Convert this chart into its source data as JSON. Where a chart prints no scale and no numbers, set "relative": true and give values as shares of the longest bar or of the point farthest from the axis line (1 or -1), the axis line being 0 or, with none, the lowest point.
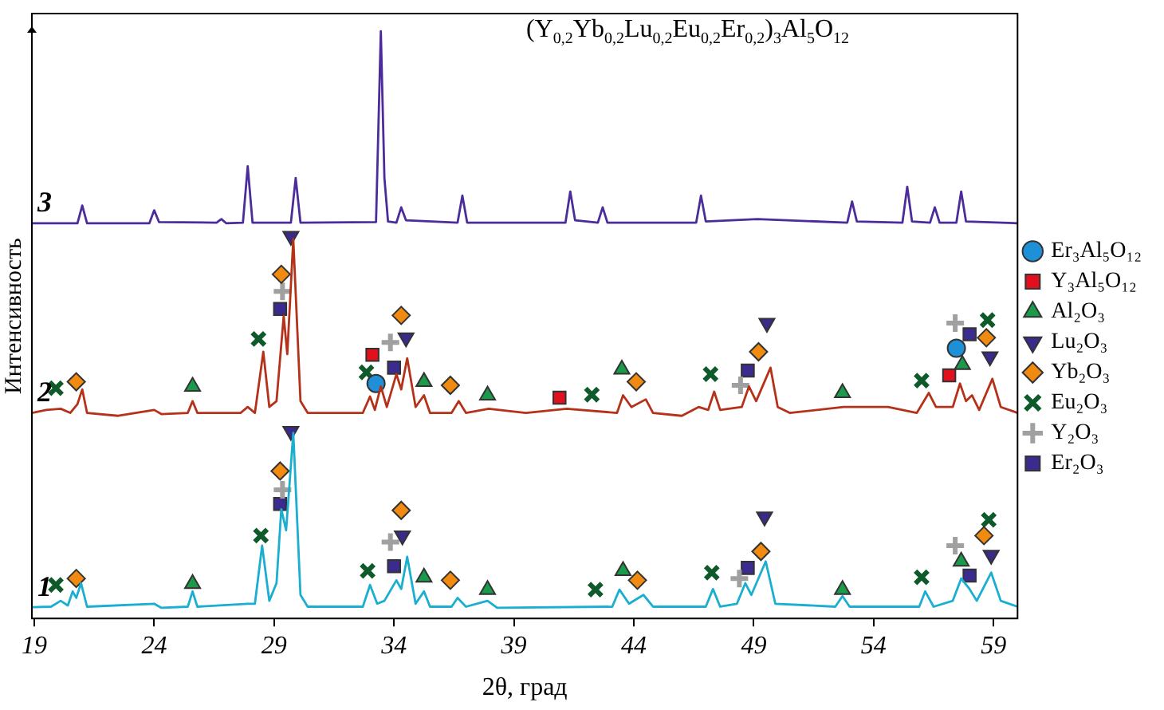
{
  "chart_data": {
    "type": "line",
    "relative": true,
    "xlabel": "2θ, град",
    "ylabel": "Интенсивность",
    "xlim": [
      18.9,
      60
    ],
    "xticks": [
      19,
      24,
      29,
      34,
      39,
      44,
      49,
      54,
      59
    ],
    "legend": "right",
    "grid": false,
    "annotations": [
      "(Y$_{0,2}$Yb$_{0,2}$Lu$_{0,2}$Eu$_{0,2}$Er$_{0,2}$)$_{3}$Al$_{5}$O$_{12}$"
    ],
    "series": [
      {
        "type": "line",
        "name": "3",
        "color": "#4b2c9a",
        "marker": "none",
        "x": [
          18.9,
          20.8,
          21.0,
          21.2,
          23.8,
          24.0,
          24.2,
          26.6,
          26.8,
          27.0,
          27.7,
          27.9,
          28.1,
          29.7,
          29.9,
          30.1,
          33.25,
          33.45,
          33.6,
          33.75,
          34.1,
          34.3,
          34.5,
          36.65,
          36.85,
          37.05,
          41.15,
          41.35,
          41.55,
          42.5,
          42.7,
          42.9,
          46.6,
          46.8,
          47.0,
          49.15,
          52.9,
          53.1,
          53.3,
          55.2,
          55.4,
          55.6,
          56.35,
          56.55,
          56.75,
          57.45,
          57.65,
          57.85,
          60
        ],
        "values": [
          0.673,
          0.673,
          0.703,
          0.673,
          0.673,
          0.695,
          0.675,
          0.674,
          0.68,
          0.673,
          0.674,
          0.77,
          0.674,
          0.674,
          0.75,
          0.674,
          0.675,
          1,
          0.75,
          0.676,
          0.674,
          0.7,
          0.678,
          0.674,
          0.72,
          0.674,
          0.674,
          0.727,
          0.678,
          0.674,
          0.7,
          0.674,
          0.674,
          0.72,
          0.676,
          0.68,
          0.674,
          0.71,
          0.676,
          0.674,
          0.735,
          0.676,
          0.674,
          0.7,
          0.674,
          0.674,
          0.727,
          0.676,
          0.673
        ]
      },
      {
        "type": "line",
        "name": "2",
        "color": "#b5321a",
        "marker": "none",
        "x": [
          18.9,
          19.5,
          20.1,
          20.5,
          20.8,
          21.0,
          21.2,
          22.5,
          24.0,
          24.3,
          25.4,
          25.6,
          25.8,
          27.6,
          27.9,
          28.2,
          28.55,
          28.8,
          29.1,
          29.4,
          29.55,
          29.8,
          30.1,
          30.4,
          32.7,
          33.0,
          33.2,
          33.45,
          33.7,
          34.1,
          34.3,
          34.55,
          34.9,
          35.25,
          35.5,
          36.4,
          36.7,
          37.0,
          37.95,
          39.5,
          41.2,
          43.3,
          43.55,
          43.9,
          44.5,
          44.8,
          46.0,
          46.7,
          47.1,
          47.35,
          47.6,
          48.5,
          48.8,
          49.1,
          49.7,
          50.0,
          50.5,
          52.75,
          54.6,
          55.8,
          56.3,
          56.6,
          57.3,
          57.6,
          57.85,
          58.1,
          58.4,
          58.95,
          59.3,
          60
        ],
        "values": [
          0.35,
          0.355,
          0.357,
          0.35,
          0.365,
          0.39,
          0.35,
          0.345,
          0.355,
          0.348,
          0.35,
          0.37,
          0.35,
          0.35,
          0.36,
          0.35,
          0.454,
          0.36,
          0.37,
          0.515,
          0.45,
          0.646,
          0.37,
          0.35,
          0.35,
          0.378,
          0.355,
          0.395,
          0.36,
          0.416,
          0.39,
          0.443,
          0.36,
          0.38,
          0.35,
          0.35,
          0.37,
          0.35,
          0.357,
          0.35,
          0.357,
          0.35,
          0.38,
          0.36,
          0.373,
          0.35,
          0.345,
          0.36,
          0.355,
          0.386,
          0.355,
          0.36,
          0.395,
          0.37,
          0.427,
          0.36,
          0.35,
          0.36,
          0.36,
          0.35,
          0.384,
          0.36,
          0.36,
          0.4,
          0.37,
          0.38,
          0.355,
          0.408,
          0.36,
          0.35
        ]
      },
      {
        "type": "line",
        "name": "1",
        "color": "#1aaed0",
        "marker": "none",
        "x": [
          18.9,
          19.7,
          20.1,
          20.4,
          20.6,
          20.75,
          20.95,
          21.2,
          24.0,
          24.3,
          25.4,
          25.6,
          25.8,
          27.9,
          28.2,
          28.5,
          28.8,
          29.1,
          29.3,
          29.5,
          29.8,
          30.1,
          30.4,
          32.7,
          33.0,
          33.3,
          33.6,
          34.1,
          34.3,
          34.55,
          34.9,
          35.25,
          35.5,
          36.4,
          36.65,
          37.0,
          37.9,
          38.3,
          43.1,
          43.4,
          43.8,
          44.4,
          44.8,
          47.0,
          47.3,
          47.6,
          48.3,
          48.65,
          48.9,
          49.5,
          49.9,
          52.4,
          52.7,
          53.0,
          55.9,
          56.15,
          56.5,
          57.3,
          57.65,
          58.0,
          58.3,
          58.9,
          59.3,
          60
        ],
        "values": [
          0.019,
          0.02,
          0.03,
          0.022,
          0.046,
          0.035,
          0.06,
          0.02,
          0.025,
          0.018,
          0.02,
          0.046,
          0.02,
          0.025,
          0.025,
          0.124,
          0.03,
          0.06,
          0.186,
          0.15,
          0.316,
          0.04,
          0.02,
          0.02,
          0.057,
          0.025,
          0.03,
          0.065,
          0.05,
          0.105,
          0.025,
          0.046,
          0.02,
          0.02,
          0.035,
          0.02,
          0.03,
          0.018,
          0.02,
          0.049,
          0.025,
          0.04,
          0.02,
          0.02,
          0.05,
          0.02,
          0.025,
          0.06,
          0.04,
          0.097,
          0.025,
          0.02,
          0.038,
          0.02,
          0.02,
          0.046,
          0.02,
          0.03,
          0.068,
          0.05,
          0.03,
          0.078,
          0.03,
          0.02
        ]
      },
      {
        "type": "scatter",
        "name": "Er₃Al₅O₁₂",
        "color": "#1e90d8",
        "marker": "circle",
        "x": [
          33.25,
          57.45
        ],
        "values": [
          0.4,
          0.46
        ]
      },
      {
        "type": "scatter",
        "name": "Y₃Al₅O₁₂",
        "color": "#e0101c",
        "marker": "square",
        "x": [
          33.1,
          40.9,
          57.15
        ],
        "values": [
          0.449,
          0.376,
          0.414
        ]
      },
      {
        "type": "scatter",
        "name": "Al₂O₃",
        "color": "#1a9a4a",
        "marker": "triangle",
        "x": [
          25.6,
          35.25,
          37.9,
          43.5,
          52.7,
          57.7,
          25.6,
          35.25,
          37.9,
          43.55,
          52.7,
          57.65
        ],
        "values": [
          0.395,
          0.403,
          0.38,
          0.424,
          0.384,
          0.432,
          0.059,
          0.07,
          0.049,
          0.081,
          0.049,
          0.097
        ]
      },
      {
        "type": "scatter",
        "name": "Lu₂O₃",
        "color": "#3a2a8a",
        "marker": "triangle-down",
        "x": [
          29.7,
          34.5,
          49.55,
          58.85,
          29.7,
          34.35,
          49.45,
          58.9
        ],
        "values": [
          0.651,
          0.478,
          0.503,
          0.446,
          0.319,
          0.141,
          0.173,
          0.108
        ]
      },
      {
        "type": "scatter",
        "name": "Yb₂O₃",
        "color": "#f08a10",
        "marker": "diamond",
        "x": [
          20.75,
          29.3,
          34.3,
          36.35,
          44.1,
          49.2,
          58.7,
          20.75,
          29.25,
          34.3,
          36.35,
          44.15,
          49.3,
          58.6
        ],
        "values": [
          0.403,
          0.586,
          0.516,
          0.397,
          0.403,
          0.454,
          0.478,
          0.068,
          0.251,
          0.184,
          0.065,
          0.065,
          0.114,
          0.141
        ]
      },
      {
        "type": "scatter",
        "name": "Eu₂O₃",
        "color": "#0e5a2a",
        "marker": "x",
        "x": [
          19.9,
          28.35,
          32.85,
          42.25,
          47.2,
          56.0,
          58.75,
          19.9,
          28.45,
          32.9,
          42.4,
          47.25,
          56.0,
          58.8
        ],
        "values": [
          0.392,
          0.476,
          0.419,
          0.381,
          0.416,
          0.405,
          0.508,
          0.057,
          0.141,
          0.081,
          0.049,
          0.078,
          0.07,
          0.168
        ]
      },
      {
        "type": "scatter",
        "name": "Y₂O₃",
        "color": "#a0a0a0",
        "marker": "plus",
        "x": [
          29.35,
          33.85,
          48.45,
          57.4,
          29.35,
          33.85,
          48.4,
          57.4
        ],
        "values": [
          0.557,
          0.47,
          0.397,
          0.503,
          0.219,
          0.13,
          0.068,
          0.124
        ]
      },
      {
        "type": "scatter",
        "name": "Er₂O₃",
        "color": "#3c2b8f",
        "marker": "square",
        "x": [
          29.25,
          34.0,
          48.75,
          58.0,
          29.25,
          34.0,
          48.75,
          58.0
        ],
        "values": [
          0.527,
          0.427,
          0.422,
          0.484,
          0.195,
          0.089,
          0.086,
          0.073
        ]
      }
    ]
  }
}
